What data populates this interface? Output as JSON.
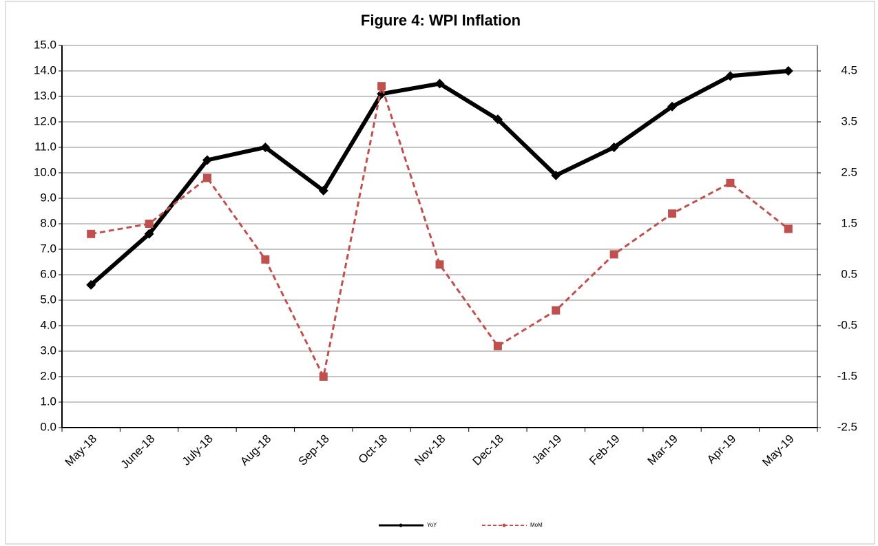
{
  "chart_data": {
    "type": "line",
    "title": "Figure 4: WPI Inflation",
    "categories": [
      "May-18",
      "June-18",
      "July-18",
      "Aug-18",
      "Sep-18",
      "Oct-18",
      "Nov-18",
      "Dec-18",
      "Jan-19",
      "Feb-19",
      "Mar-19",
      "Apr-19",
      "May-19"
    ],
    "series": [
      {
        "name": "YoY",
        "color": "#000000",
        "marker": "diamond",
        "values": [
          5.6,
          7.6,
          10.5,
          11.0,
          9.3,
          13.1,
          13.5,
          12.1,
          9.9,
          11.0,
          12.6,
          13.8,
          14.0
        ]
      },
      {
        "name": "MoM",
        "color": "#c0504d",
        "marker": "square",
        "dashed": true,
        "axis": "y2",
        "values": [
          1.3,
          1.5,
          2.4,
          0.8,
          -1.5,
          4.2,
          0.7,
          -0.9,
          -0.2,
          0.9,
          1.7,
          2.3,
          1.4
        ]
      }
    ],
    "ylim": [
      0,
      15
    ],
    "yticks": [
      {
        "value": 0,
        "label": "0.0"
      },
      {
        "value": 1,
        "label": "1.0"
      },
      {
        "value": 2,
        "label": "2.0"
      },
      {
        "value": 3,
        "label": "3.0"
      },
      {
        "value": 4,
        "label": "4.0"
      },
      {
        "value": 5,
        "label": "5.0"
      },
      {
        "value": 6,
        "label": "6.0"
      },
      {
        "value": 7,
        "label": "7.0"
      },
      {
        "value": 8,
        "label": "8.0"
      },
      {
        "value": 9,
        "label": "9.0"
      },
      {
        "value": 10,
        "label": "10.0"
      },
      {
        "value": 11,
        "label": "11.0"
      },
      {
        "value": 12,
        "label": "12.0"
      },
      {
        "value": 13,
        "label": "13.0"
      },
      {
        "value": 14,
        "label": "14.0"
      },
      {
        "value": 15,
        "label": "15.0"
      }
    ],
    "y2lim": [
      -2.5,
      5.0
    ],
    "y2ticks": [
      -2.5,
      -1.5,
      -0.5,
      0.5,
      1.5,
      2.5,
      3.5,
      4.5
    ],
    "grid": true,
    "legend": "bottom"
  }
}
